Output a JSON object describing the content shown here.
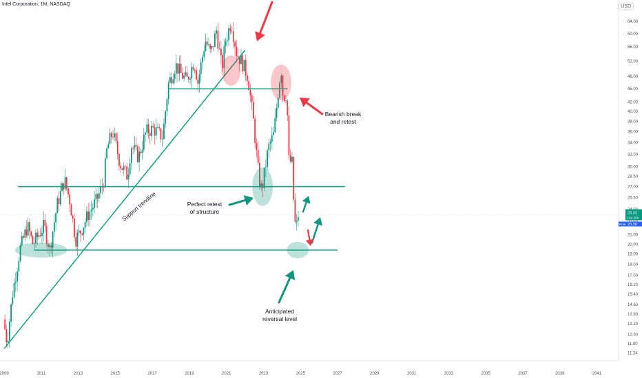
{
  "header": {
    "title": "Intel Corporation, 1M, NASDAQ",
    "currency": "USD"
  },
  "chart_data": {
    "type": "candlestick",
    "symbol": "Intel Corporation",
    "interval": "1M",
    "exchange": "NASDAQ",
    "y_scale": "log",
    "ylim": [
      11.2,
      70
    ],
    "xlim": [
      2009.0,
      2041.5
    ],
    "y_ticks": [
      "64.00",
      "60.00",
      "56.00",
      "52.00",
      "48.00",
      "45.00",
      "42.00",
      "40.00",
      "38.00",
      "36.00",
      "34.00",
      "32.00",
      "30.00",
      "28.50",
      "27.00",
      "25.50",
      "24.00",
      "22.50",
      "21.00",
      "20.00",
      "19.00",
      "18.00",
      "17.00",
      "16.20",
      "15.40",
      "14.60",
      "13.90",
      "13.20",
      "12.50",
      "11.90",
      "11.34"
    ],
    "x_ticks": [
      "2009",
      "2011",
      "2013",
      "2015",
      "2017",
      "2019",
      "2021",
      "2023",
      "2025",
      "2027",
      "2029",
      "2031",
      "2033",
      "2035",
      "2037",
      "2039",
      "2041"
    ],
    "last_price": {
      "value": "23.32",
      "countdown": "23d 20h",
      "label": "Post",
      "post_value": "23.36"
    },
    "anchor_prices": [
      [
        2009.0,
        13.5
      ],
      [
        2009.2,
        12.0
      ],
      [
        2009.5,
        15.5
      ],
      [
        2009.9,
        19.5
      ],
      [
        2010.3,
        22.0
      ],
      [
        2010.6,
        20.0
      ],
      [
        2010.9,
        21.0
      ],
      [
        2011.2,
        22.0
      ],
      [
        2011.5,
        19.5
      ],
      [
        2011.9,
        24.5
      ],
      [
        2012.3,
        28.0
      ],
      [
        2012.6,
        25.0
      ],
      [
        2012.9,
        20.5
      ],
      [
        2013.2,
        21.5
      ],
      [
        2013.6,
        23.5
      ],
      [
        2014.0,
        25.0
      ],
      [
        2014.4,
        27.5
      ],
      [
        2014.6,
        33.0
      ],
      [
        2014.9,
        36.0
      ],
      [
        2015.3,
        30.5
      ],
      [
        2015.7,
        28.5
      ],
      [
        2015.9,
        33.5
      ],
      [
        2016.3,
        31.5
      ],
      [
        2016.7,
        36.0
      ],
      [
        2017.1,
        36.5
      ],
      [
        2017.6,
        35.0
      ],
      [
        2017.9,
        46.0
      ],
      [
        2018.3,
        51.0
      ],
      [
        2018.6,
        48.5
      ],
      [
        2018.9,
        47.0
      ],
      [
        2019.3,
        52.0
      ],
      [
        2019.5,
        46.5
      ],
      [
        2019.9,
        58.0
      ],
      [
        2020.2,
        54.0
      ],
      [
        2020.5,
        61.0
      ],
      [
        2020.8,
        50.0
      ],
      [
        2021.0,
        58.0
      ],
      [
        2021.3,
        64.0
      ],
      [
        2021.6,
        54.0
      ],
      [
        2021.9,
        51.5
      ],
      [
        2022.2,
        48.0
      ],
      [
        2022.5,
        38.0
      ],
      [
        2022.8,
        28.0
      ],
      [
        2022.95,
        26.5
      ],
      [
        2023.3,
        33.0
      ],
      [
        2023.6,
        35.5
      ],
      [
        2023.9,
        47.0
      ],
      [
        2024.0,
        49.5
      ],
      [
        2024.1,
        43.0
      ],
      [
        2024.3,
        44.0
      ],
      [
        2024.4,
        31.0
      ],
      [
        2024.6,
        30.5
      ],
      [
        2024.7,
        23.0
      ],
      [
        2024.8,
        21.5
      ],
      [
        2024.9,
        23.32
      ]
    ],
    "horizontal_levels": [
      45.0,
      27.0,
      19.4
    ],
    "support_trendline": [
      [
        2009.0,
        11.6
      ],
      [
        2022.0,
        55.0
      ]
    ],
    "annotations": {
      "trendline": "Support trendline",
      "bearish": [
        "Bearish break",
        "and retest"
      ],
      "retest": [
        "Perfect retest",
        "of structure"
      ],
      "reversal": [
        "Anticipated",
        "reversal level"
      ]
    },
    "colors": {
      "bull": "#089981",
      "bear": "#f23645",
      "teal_line": "#10a080",
      "red_arrow": "#f23645",
      "teal_arrow": "#12967f",
      "grid_text": "#4a4f5a"
    }
  }
}
